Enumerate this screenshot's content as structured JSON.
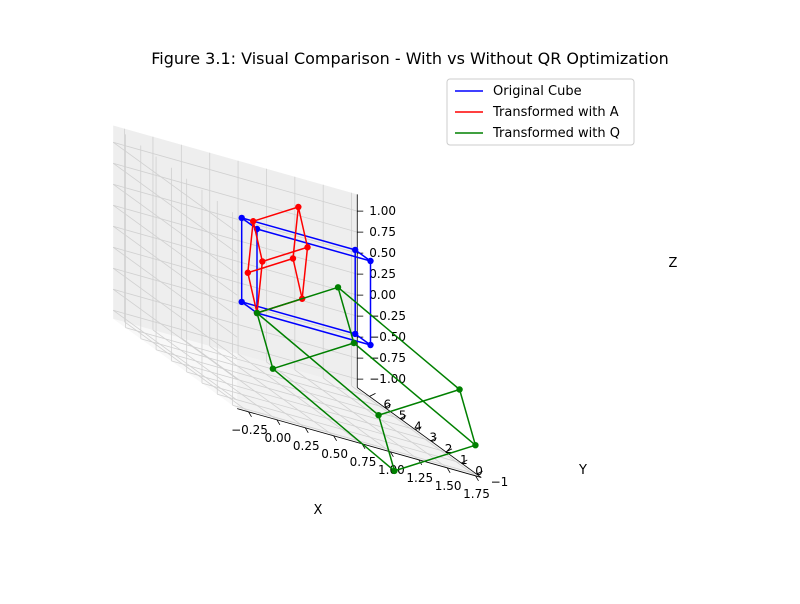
{
  "chart_data": {
    "type": "line3d",
    "title": "Figure 3.1: Visual Comparison - With vs Without QR Optimization",
    "xlabel": "X",
    "ylabel": "Y",
    "zlabel": "Z",
    "xlim": [
      -0.35,
      1.8
    ],
    "ylim": [
      -1.3,
      6.8
    ],
    "zlim": [
      -1.1,
      1.2
    ],
    "x_ticks": [
      -0.25,
      0.0,
      0.25,
      0.5,
      0.75,
      1.0,
      1.25,
      1.5,
      1.75
    ],
    "x_tick_labels": [
      "−0.25",
      "0.00",
      "0.25",
      "0.50",
      "0.75",
      "1.00",
      "1.25",
      "1.50",
      "1.75"
    ],
    "y_ticks": [
      -1,
      0,
      1,
      2,
      3,
      4,
      5,
      6
    ],
    "y_tick_labels": [
      "−1",
      "0",
      "1",
      "2",
      "3",
      "4",
      "5",
      "6"
    ],
    "z_ticks": [
      -1.0,
      -0.75,
      -0.5,
      -0.25,
      0.0,
      0.25,
      0.5,
      0.75,
      1.0
    ],
    "z_tick_labels": [
      "−1.00",
      "−0.75",
      "−0.50",
      "−0.25",
      "0.00",
      "0.25",
      "0.50",
      "0.75",
      "1.00"
    ],
    "legend": {
      "placement": "top-right",
      "entries": [
        "Original Cube",
        "Transformed with A",
        "Transformed with Q"
      ]
    },
    "grid": true,
    "edges": [
      [
        0,
        1
      ],
      [
        1,
        2
      ],
      [
        2,
        3
      ],
      [
        3,
        0
      ],
      [
        4,
        5
      ],
      [
        5,
        6
      ],
      [
        6,
        7
      ],
      [
        7,
        4
      ],
      [
        0,
        4
      ],
      [
        1,
        5
      ],
      [
        2,
        6
      ],
      [
        3,
        7
      ]
    ],
    "series": [
      {
        "name": "Original Cube",
        "color": "#0000ff",
        "points": [
          [
            0,
            0,
            0
          ],
          [
            1,
            0,
            0
          ],
          [
            1,
            1,
            0
          ],
          [
            0,
            1,
            0
          ],
          [
            0,
            0,
            1
          ],
          [
            1,
            0,
            1
          ],
          [
            1,
            1,
            1
          ],
          [
            0,
            1,
            1
          ]
        ]
      },
      {
        "name": "Transformed with A",
        "color": "#ff0000",
        "points": [
          [
            0,
            0,
            0
          ],
          [
            0.6,
            1.5,
            0.2
          ],
          [
            1.2,
            5.6,
            0.5
          ],
          [
            0.6,
            4.1,
            0.3
          ],
          [
            0,
            0.6,
            0.4
          ],
          [
            0.6,
            2.1,
            0.6
          ],
          [
            1.2,
            6.2,
            0.9
          ],
          [
            0.6,
            4.7,
            0.7
          ]
        ]
      },
      {
        "name": "Transformed with Q",
        "color": "#008000",
        "points": [
          [
            0,
            0,
            0
          ],
          [
            1.04,
            -0.23,
            -0.79
          ],
          [
            1.65,
            -1.0,
            -0.15
          ],
          [
            0.61,
            -0.77,
            0.64
          ],
          [
            0.04,
            -0.74,
            -0.55
          ],
          [
            1.08,
            -0.97,
            -1.34
          ],
          [
            1.69,
            -1.74,
            -0.7
          ],
          [
            0.65,
            -1.51,
            0.09
          ]
        ]
      }
    ]
  }
}
